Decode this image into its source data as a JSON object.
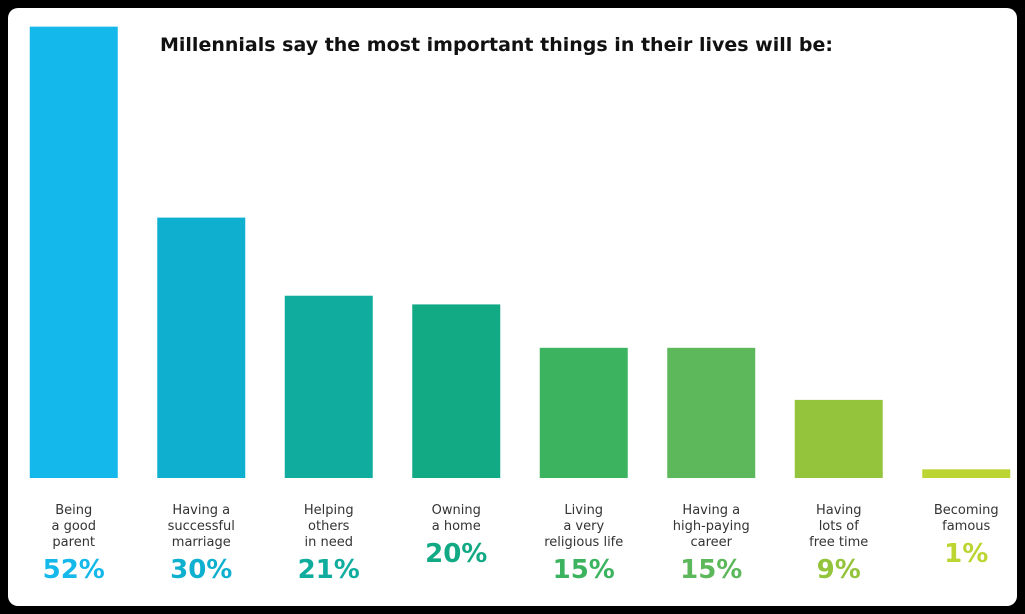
{
  "chart_data": {
    "type": "bar",
    "title": "Millennials say the most important things in their lives will be:",
    "categories": [
      "Being\na good\nparent",
      "Having a\nsuccessful\nmarriage",
      "Helping\nothers\nin need",
      "Owning\na home",
      "Living\na very\nreligious life",
      "Having a\nhigh-paying\ncareer",
      "Having\nlots of\nfree time",
      "Becoming\nfamous"
    ],
    "values": [
      52,
      30,
      21,
      20,
      15,
      15,
      9,
      1
    ],
    "value_labels": [
      "52%",
      "30%",
      "21%",
      "20%",
      "15%",
      "15%",
      "9%",
      "1%"
    ],
    "colors": [
      "#14b8ea",
      "#0fb0cf",
      "#10ad9e",
      "#12a985",
      "#3cb35f",
      "#5cb85a",
      "#93c43b",
      "#bdd532"
    ]
  }
}
